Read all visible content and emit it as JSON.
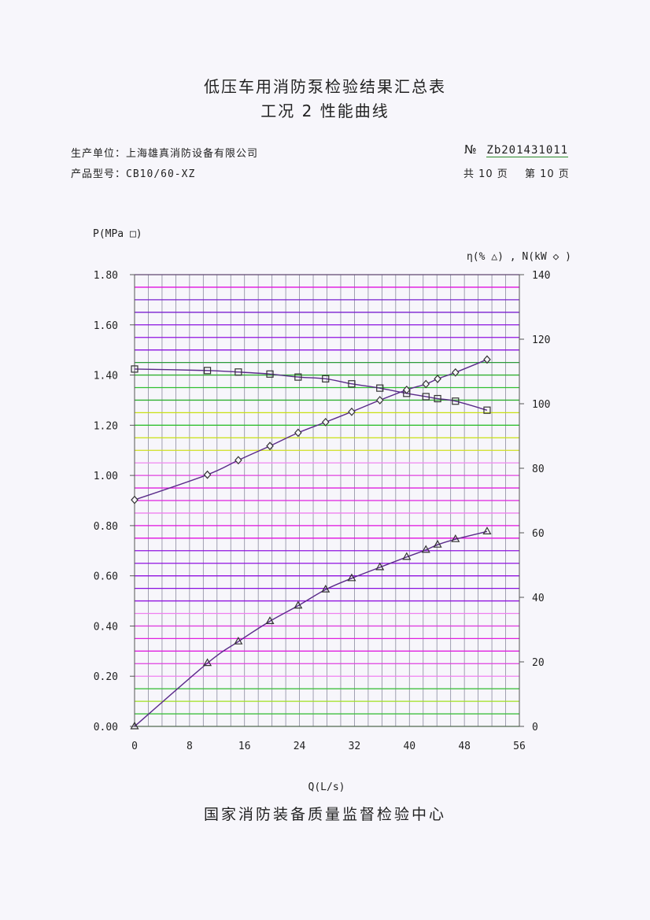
{
  "header": {
    "title": "低压车用消防泵检验结果汇总表",
    "subtitle": "工况 2 性能曲线",
    "manufacturer_label": "生产单位：",
    "manufacturer": "上海雄真消防设备有限公司",
    "model_label": "产品型号：",
    "model": "CB10/60-XZ",
    "no_label": "№",
    "no": "Zb201431011",
    "total_pages": "共 10 页",
    "page": "第 10 页"
  },
  "chart_data": {
    "type": "line",
    "title": "",
    "xlabel": "Q(L/s)",
    "ylabel_left": "P(MPa □)",
    "ylabel_right": "η(% △) , N(kW ◇ )",
    "xlim": [
      0,
      56
    ],
    "ylim_left": [
      0,
      1.8
    ],
    "ylim_right": [
      0,
      140
    ],
    "x_ticks": [
      "0",
      "8",
      "16",
      "24",
      "32",
      "40",
      "48",
      "56"
    ],
    "y_left_ticks": [
      "0.00",
      "0.20",
      "0.40",
      "0.60",
      "0.80",
      "1.00",
      "1.20",
      "1.40",
      "1.60",
      "1.80"
    ],
    "y_right_ticks": [
      "0",
      "20",
      "40",
      "60",
      "80",
      "100",
      "120",
      "140"
    ],
    "grid": true,
    "x": [
      0,
      10.6,
      15.1,
      19.7,
      23.8,
      27.8,
      31.6,
      35.7,
      39.6,
      42.4,
      44.1,
      46.7,
      51.3
    ],
    "series": [
      {
        "name": "P",
        "axis": "left",
        "marker": "square",
        "values": [
          1.424,
          1.418,
          1.412,
          1.404,
          1.392,
          1.385,
          1.365,
          1.348,
          1.327,
          1.314,
          1.306,
          1.296,
          1.26
        ]
      },
      {
        "name": "η",
        "axis": "right",
        "marker": "triangle",
        "values": [
          0,
          19.6,
          26.3,
          32.6,
          37.4,
          42.4,
          45.9,
          49.3,
          52.5,
          54.7,
          56.3,
          58.0,
          60.4
        ]
      },
      {
        "name": "N",
        "axis": "right",
        "marker": "diamond",
        "values": [
          70.2,
          78.0,
          82.5,
          86.9,
          91.0,
          94.3,
          97.5,
          101.1,
          104.3,
          106.1,
          107.7,
          109.7,
          113.7
        ]
      }
    ]
  },
  "footer": "国家消防装备质量监督检验中心"
}
